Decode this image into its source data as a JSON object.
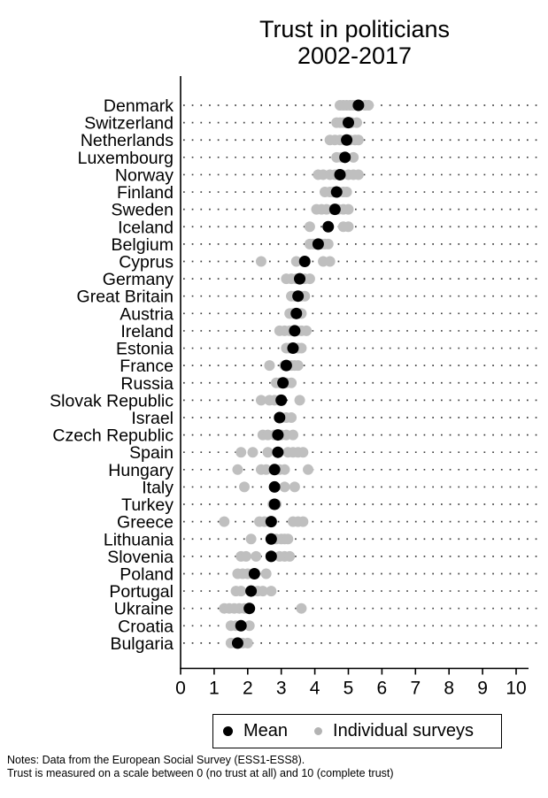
{
  "title": {
    "line1": "Trust in politicians",
    "line2": "2002-2017"
  },
  "legend": {
    "mean_label": "Mean",
    "surveys_label": "Individual surveys"
  },
  "notes": {
    "line1": "Notes: Data from the European Social Survey (ESS1-ESS8).",
    "line2": "Trust is measured on a scale between 0 (no trust at all) and 10 (complete trust)"
  },
  "colors": {
    "mean": "#000000",
    "survey": "#bfbfbf",
    "legend_survey": "#b3b3b3",
    "grid": "#404040",
    "axis": "#000000"
  },
  "chart_data": {
    "type": "scatter",
    "subtype": "horizontal-dot-plot",
    "title": "Trust in politicians 2002-2017",
    "xlabel": "",
    "ylabel": "",
    "xlim": [
      0,
      10
    ],
    "xticks": [
      0,
      1,
      2,
      3,
      4,
      5,
      6,
      7,
      8,
      9,
      10
    ],
    "grid": "dotted-horizontal-per-category",
    "legend_position": "bottom",
    "series": [
      {
        "name": "Mean",
        "color": "#000000"
      },
      {
        "name": "Individual surveys",
        "color": "#bfbfbf"
      }
    ],
    "countries": [
      {
        "name": "Denmark",
        "mean": 5.3,
        "surveys": [
          4.75,
          4.85,
          4.95,
          5.05,
          5.15,
          5.5,
          5.6
        ]
      },
      {
        "name": "Switzerland",
        "mean": 5.0,
        "surveys": [
          4.65,
          4.75,
          4.85,
          4.95,
          5.1,
          5.25
        ]
      },
      {
        "name": "Netherlands",
        "mean": 4.95,
        "surveys": [
          4.45,
          4.6,
          4.75,
          4.9,
          5.05,
          5.2,
          5.3
        ]
      },
      {
        "name": "Luxembourg",
        "mean": 4.9,
        "surveys": [
          4.65,
          4.8,
          5.15
        ]
      },
      {
        "name": "Norway",
        "mean": 4.75,
        "surveys": [
          4.1,
          4.25,
          4.45,
          4.6,
          4.8,
          5.0,
          5.15,
          5.3
        ]
      },
      {
        "name": "Finland",
        "mean": 4.65,
        "surveys": [
          4.3,
          4.45,
          4.55,
          4.7,
          4.85,
          4.95
        ]
      },
      {
        "name": "Sweden",
        "mean": 4.6,
        "surveys": [
          4.05,
          4.2,
          4.35,
          4.55,
          4.7,
          4.85,
          5.0
        ]
      },
      {
        "name": "Iceland",
        "mean": 4.4,
        "surveys": [
          3.85,
          4.85,
          5.0
        ]
      },
      {
        "name": "Belgium",
        "mean": 4.1,
        "surveys": [
          3.85,
          3.95,
          4.05,
          4.2,
          4.3,
          4.4
        ]
      },
      {
        "name": "Cyprus",
        "mean": 3.7,
        "surveys": [
          2.4,
          3.45,
          4.25,
          4.45
        ]
      },
      {
        "name": "Germany",
        "mean": 3.55,
        "surveys": [
          3.15,
          3.3,
          3.45,
          3.6,
          3.7,
          3.85
        ]
      },
      {
        "name": "Great Britain",
        "mean": 3.5,
        "surveys": [
          3.3,
          3.4,
          3.5,
          3.6,
          3.7
        ]
      },
      {
        "name": "Austria",
        "mean": 3.45,
        "surveys": [
          3.25,
          3.35,
          3.5,
          3.6
        ]
      },
      {
        "name": "Ireland",
        "mean": 3.4,
        "surveys": [
          2.95,
          3.1,
          3.25,
          3.45,
          3.6,
          3.75
        ]
      },
      {
        "name": "Estonia",
        "mean": 3.35,
        "surveys": [
          3.15,
          3.25,
          3.35,
          3.5,
          3.6
        ]
      },
      {
        "name": "France",
        "mean": 3.15,
        "surveys": [
          2.65,
          3.1,
          3.2,
          3.3,
          3.4,
          3.5
        ]
      },
      {
        "name": "Russia",
        "mean": 3.05,
        "surveys": [
          2.85,
          2.95,
          3.05,
          3.15,
          3.3
        ]
      },
      {
        "name": "Slovak Republic",
        "mean": 3.0,
        "surveys": [
          2.4,
          2.65,
          2.8,
          2.95,
          3.55
        ]
      },
      {
        "name": "Israel",
        "mean": 2.95,
        "surveys": [
          3.0,
          3.15,
          3.3
        ]
      },
      {
        "name": "Czech Republic",
        "mean": 2.9,
        "surveys": [
          2.45,
          2.6,
          2.8,
          3.0,
          3.15,
          3.35
        ]
      },
      {
        "name": "Spain",
        "mean": 2.9,
        "surveys": [
          1.8,
          2.15,
          2.6,
          3.2,
          3.35,
          3.5,
          3.65
        ]
      },
      {
        "name": "Hungary",
        "mean": 2.8,
        "surveys": [
          1.7,
          2.4,
          2.55,
          2.95,
          3.1,
          3.8
        ]
      },
      {
        "name": "Italy",
        "mean": 2.8,
        "surveys": [
          1.9,
          3.1,
          3.4
        ]
      },
      {
        "name": "Turkey",
        "mean": 2.8,
        "surveys": [
          2.75,
          2.85
        ]
      },
      {
        "name": "Greece",
        "mean": 2.7,
        "surveys": [
          1.3,
          2.35,
          2.5,
          3.35,
          3.5,
          3.65
        ]
      },
      {
        "name": "Lithuania",
        "mean": 2.7,
        "surveys": [
          2.1,
          2.85,
          3.0,
          3.1,
          3.2
        ]
      },
      {
        "name": "Slovenia",
        "mean": 2.7,
        "surveys": [
          1.8,
          1.95,
          2.25,
          2.95,
          3.1,
          3.25
        ]
      },
      {
        "name": "Poland",
        "mean": 2.2,
        "surveys": [
          1.7,
          1.85,
          2.0,
          2.55
        ]
      },
      {
        "name": "Portugal",
        "mean": 2.1,
        "surveys": [
          1.65,
          1.8,
          2.3,
          2.45,
          2.7
        ]
      },
      {
        "name": "Ukraine",
        "mean": 2.05,
        "surveys": [
          1.3,
          1.45,
          1.6,
          1.75,
          1.9,
          3.6
        ]
      },
      {
        "name": "Croatia",
        "mean": 1.8,
        "surveys": [
          1.5,
          1.65,
          2.05
        ]
      },
      {
        "name": "Bulgaria",
        "mean": 1.7,
        "surveys": [
          1.5,
          1.65,
          1.85,
          2.0
        ]
      }
    ]
  }
}
